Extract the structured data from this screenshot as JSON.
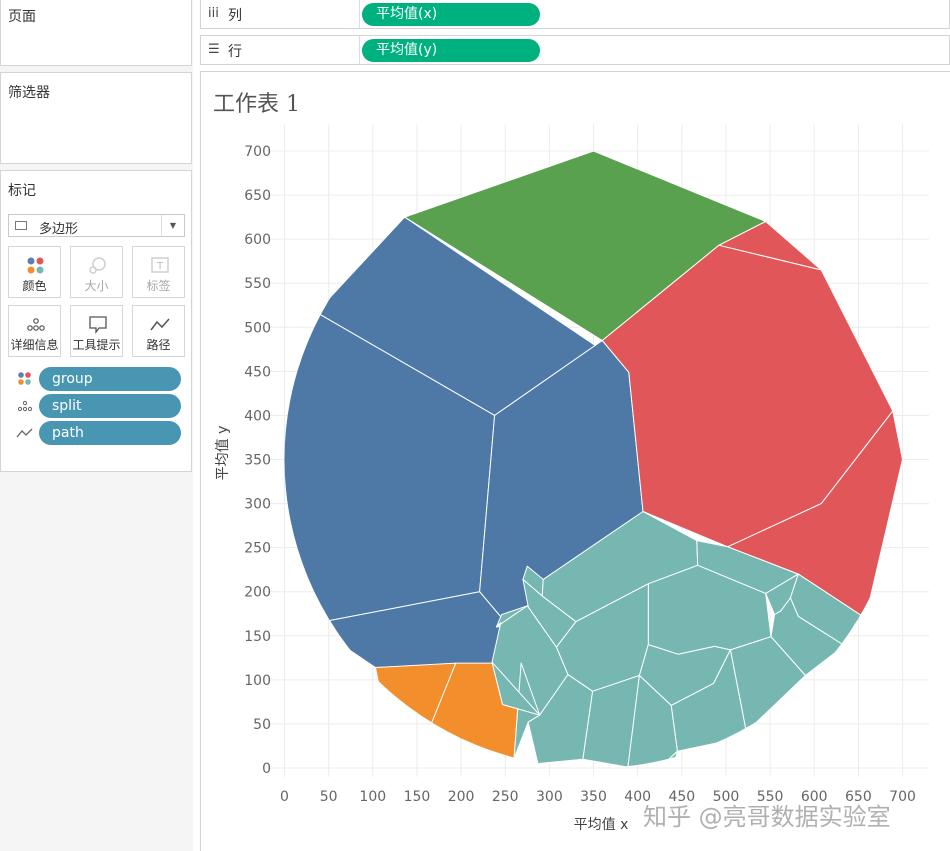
{
  "left_panel": {
    "pages_title": "页面",
    "filters_title": "筛选器",
    "marks": {
      "title": "标记",
      "mark_type": "多边形",
      "buttons": [
        {
          "label": "颜色",
          "icon": "color-dots-icon",
          "enabled": true
        },
        {
          "label": "大小",
          "icon": "size-icon",
          "enabled": false
        },
        {
          "label": "标签",
          "icon": "label-icon",
          "enabled": false
        },
        {
          "label": "详细信息",
          "icon": "detail-dots-icon",
          "enabled": true
        },
        {
          "label": "工具提示",
          "icon": "tooltip-icon",
          "enabled": true
        },
        {
          "label": "路径",
          "icon": "path-line-icon",
          "enabled": true
        }
      ],
      "fields": [
        {
          "name": "group",
          "icon": "color-dots-icon"
        },
        {
          "name": "split",
          "icon": "detail-dots-icon"
        },
        {
          "name": "path",
          "icon": "path-line-icon"
        }
      ]
    }
  },
  "shelves": {
    "columns": {
      "icon": "columns-icon",
      "label": "列",
      "pill": "平均值(x)"
    },
    "rows": {
      "icon": "rows-icon",
      "label": "行",
      "pill": "平均值(y)"
    }
  },
  "worksheet": {
    "title": "工作表 1"
  },
  "watermark": "知乎 @亮哥数据实验室",
  "colors": {
    "blue": "#4e78a6",
    "green": "#59a14f",
    "red": "#e15759",
    "teal": "#76b7b2",
    "orange": "#f28e2b",
    "pill_green": "#00b180",
    "pill_blue": "#4996b2"
  },
  "chart_data": {
    "type": "voronoi-treemap",
    "xlabel": "平均值 x",
    "ylabel": "平均值 y",
    "xlim": [
      -20,
      730
    ],
    "ylim": [
      -10,
      730
    ],
    "xticks": [
      0,
      50,
      100,
      150,
      200,
      250,
      300,
      350,
      400,
      450,
      500,
      550,
      600,
      650,
      700
    ],
    "yticks": [
      0,
      50,
      100,
      150,
      200,
      250,
      300,
      350,
      400,
      450,
      500,
      550,
      600,
      650,
      700
    ],
    "grid": true,
    "circle": {
      "cx": 350,
      "cy": 350,
      "r": 350
    },
    "groups": [
      {
        "color": "blue",
        "cells": [
          [
            [
              136,
              625
            ],
            [
              357,
              476
            ],
            [
              360,
              485
            ],
            [
              238,
              400
            ],
            [
              36,
              517
            ]
          ],
          [
            [
              36,
              517
            ],
            [
              238,
              400
            ],
            [
              221,
              200
            ],
            [
              50,
              167
            ],
            [
              -1,
              250
            ],
            [
              -3,
              350
            ],
            [
              7,
              436
            ]
          ],
          [
            [
              238,
              400
            ],
            [
              360,
              485
            ],
            [
              390,
              449
            ],
            [
              406,
              291
            ],
            [
              258,
              156
            ],
            [
              221,
              200
            ]
          ],
          [
            [
              50,
              167
            ],
            [
              221,
              200
            ],
            [
              258,
              156
            ],
            [
              280,
              163
            ],
            [
              268,
              119
            ],
            [
              103,
              114
            ],
            [
              50,
              150
            ]
          ],
          [
            [
              258,
              156
            ],
            [
              406,
              291
            ],
            [
              280,
              163
            ]
          ]
        ]
      },
      {
        "color": "green",
        "cells": [
          [
            [
              136,
              625
            ],
            [
              350,
              700
            ],
            [
              545,
              620
            ],
            [
              492,
              593
            ],
            [
              360,
              485
            ]
          ]
        ]
      },
      {
        "color": "red",
        "cells": [
          [
            [
              545,
              620
            ],
            [
              608,
              565
            ],
            [
              492,
              593
            ]
          ],
          [
            [
              360,
              485
            ],
            [
              492,
              593
            ],
            [
              608,
              565
            ],
            [
              689,
              405
            ],
            [
              608,
              300
            ],
            [
              502,
              251
            ],
            [
              406,
              291
            ],
            [
              390,
              449
            ]
          ],
          [
            [
              502,
              251
            ],
            [
              608,
              300
            ],
            [
              689,
              405
            ],
            [
              700,
              350
            ],
            [
              658,
              170
            ],
            [
              582,
              220
            ]
          ]
        ]
      },
      {
        "color": "orange",
        "cells": [
          [
            [
              103,
              114
            ],
            [
              194,
              119
            ],
            [
              163,
              42
            ],
            [
              110,
              80
            ]
          ],
          [
            [
              194,
              119
            ],
            [
              268,
              119
            ],
            [
              260,
              11
            ],
            [
              163,
              42
            ]
          ]
        ]
      },
      {
        "color": "teal",
        "cells": [
          [
            [
              275,
              229
            ],
            [
              293,
              214
            ],
            [
              292,
              195
            ],
            [
              270,
              214
            ]
          ],
          [
            [
              293,
              214
            ],
            [
              406,
              291
            ],
            [
              467,
              258
            ],
            [
              468,
              230
            ],
            [
              412,
              209
            ],
            [
              330,
              166
            ],
            [
              292,
              195
            ]
          ],
          [
            [
              467,
              258
            ],
            [
              502,
              251
            ],
            [
              582,
              220
            ],
            [
              545,
              198
            ],
            [
              468,
              230
            ]
          ],
          [
            [
              545,
              198
            ],
            [
              582,
              220
            ],
            [
              573,
              193
            ],
            [
              562,
              178
            ],
            [
              555,
              174
            ]
          ],
          [
            [
              573,
              193
            ],
            [
              582,
              220
            ],
            [
              658,
              170
            ],
            [
              634,
              139
            ],
            [
              582,
              172
            ]
          ],
          [
            [
              412,
              209
            ],
            [
              468,
              230
            ],
            [
              545,
              198
            ],
            [
              551,
              149
            ],
            [
              505,
              134
            ],
            [
              487,
              138
            ],
            [
              446,
              129
            ],
            [
              412,
              140
            ]
          ],
          [
            [
              555,
              174
            ],
            [
              562,
              178
            ],
            [
              573,
              193
            ],
            [
              582,
              172
            ],
            [
              634,
              139
            ],
            [
              590,
              105
            ],
            [
              551,
              149
            ]
          ],
          [
            [
              270,
              214
            ],
            [
              292,
              195
            ],
            [
              330,
              166
            ],
            [
              308,
              137
            ],
            [
              275,
              184
            ],
            [
              246,
              174
            ],
            [
              240,
              160
            ],
            [
              280,
              163
            ]
          ],
          [
            [
              330,
              166
            ],
            [
              412,
              209
            ],
            [
              412,
              140
            ],
            [
              402,
              105
            ],
            [
              349,
              87
            ],
            [
              321,
              106
            ],
            [
              308,
              137
            ]
          ],
          [
            [
              412,
              140
            ],
            [
              446,
              129
            ],
            [
              487,
              138
            ],
            [
              505,
              134
            ],
            [
              486,
              96
            ],
            [
              438,
              71
            ],
            [
              402,
              105
            ]
          ],
          [
            [
              551,
              149
            ],
            [
              590,
              105
            ],
            [
              523,
              41
            ],
            [
              505,
              134
            ]
          ],
          [
            [
              245,
              165
            ],
            [
              240,
              160
            ],
            [
              275,
              184
            ],
            [
              308,
              137
            ],
            [
              321,
              106
            ],
            [
              289,
              60
            ],
            [
              247,
              72
            ],
            [
              235,
              120
            ]
          ],
          [
            [
              505,
              134
            ],
            [
              523,
              41
            ],
            [
              488,
              28
            ],
            [
              445,
              19
            ],
            [
              438,
              71
            ],
            [
              486,
              96
            ]
          ],
          [
            [
              268,
              119
            ],
            [
              289,
              60
            ],
            [
              276,
              52
            ],
            [
              260,
              11
            ]
          ],
          [
            [
              289,
              60
            ],
            [
              247,
              72
            ],
            [
              235,
              120
            ]
          ],
          [
            [
              289,
              60
            ],
            [
              321,
              106
            ],
            [
              349,
              87
            ],
            [
              338,
              10
            ],
            [
              287,
              5
            ],
            [
              276,
              52
            ]
          ],
          [
            [
              349,
              87
            ],
            [
              402,
              105
            ],
            [
              389,
              1
            ],
            [
              338,
              10
            ]
          ],
          [
            [
              402,
              105
            ],
            [
              438,
              71
            ],
            [
              445,
              19
            ],
            [
              430,
              5
            ],
            [
              389,
              1
            ]
          ],
          [
            [
              430,
              5
            ],
            [
              445,
              19
            ],
            [
              440,
              1
            ]
          ]
        ]
      }
    ]
  }
}
